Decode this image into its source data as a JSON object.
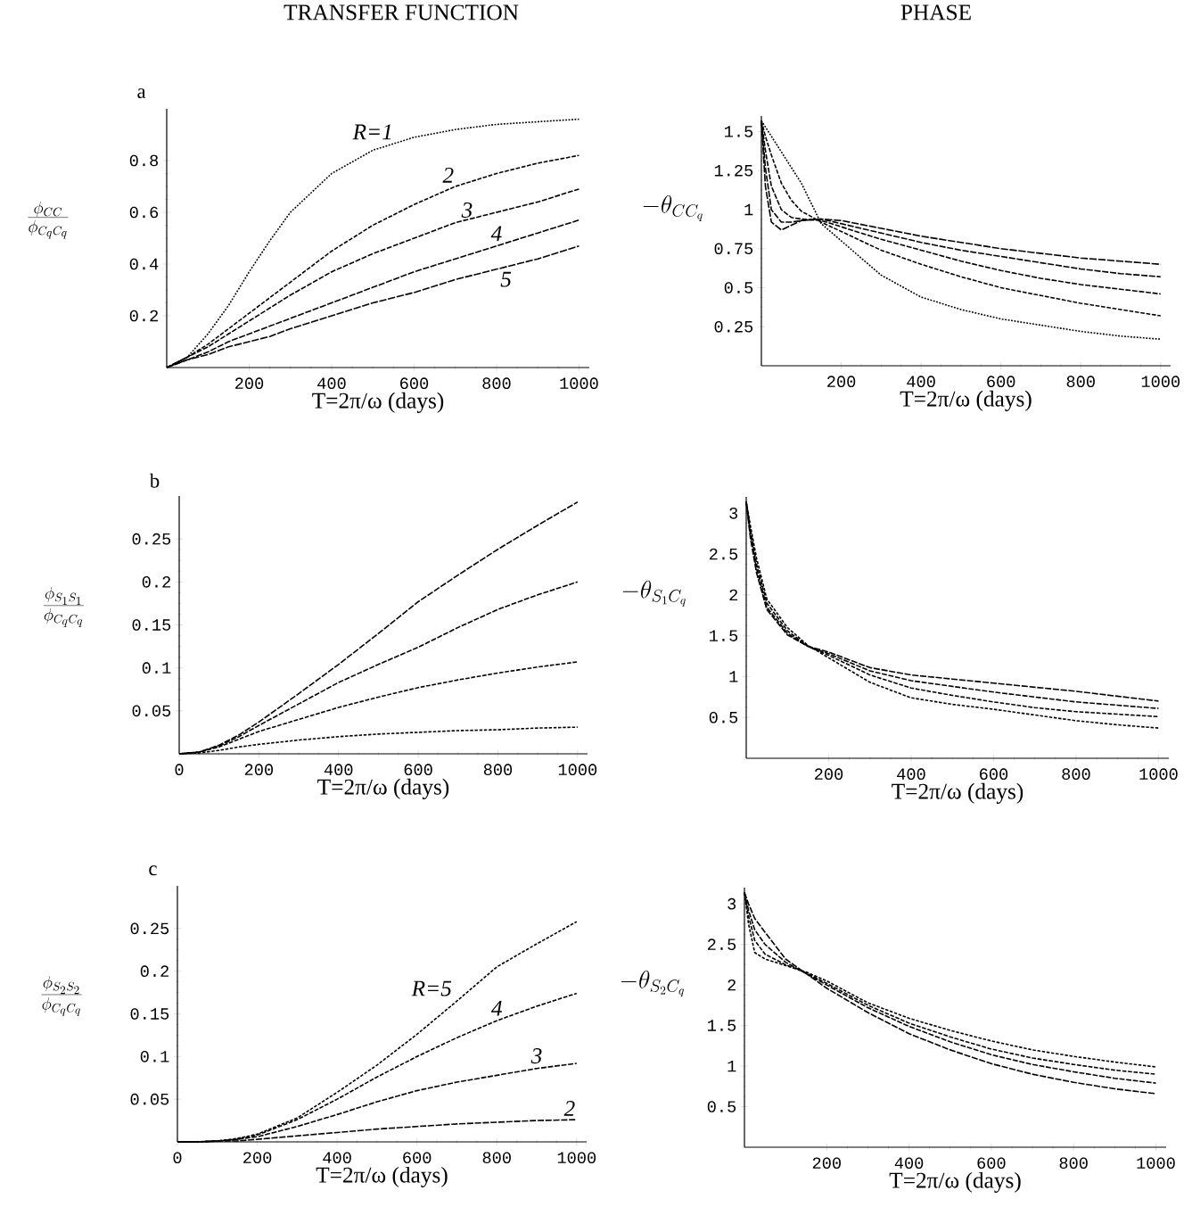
{
  "chart_data": [
    {
      "type": "line",
      "title": "TRANSFER FUNCTION",
      "annotations": [
        "a"
      ],
      "xlabel": "T=2π/ω (days)",
      "ylabel": "\\frac{\\phi_{CC}}{\\phi_{C_q C_q}}",
      "x": [
        0,
        50,
        100,
        150,
        200,
        250,
        300,
        400,
        500,
        600,
        700,
        800,
        900,
        1000
      ],
      "xlim": [
        0,
        1025
      ],
      "ylim": [
        0,
        1
      ],
      "xticks": [
        200,
        400,
        600,
        800,
        1000
      ],
      "yticks": [
        0.2,
        0.4,
        0.6,
        0.8
      ],
      "series": [
        {
          "name": "R=1",
          "color": "#000000",
          "line_style": "dotted",
          "values": [
            0,
            0.04,
            0.13,
            0.24,
            0.37,
            0.49,
            0.6,
            0.75,
            0.84,
            0.89,
            0.92,
            0.94,
            0.95,
            0.96
          ]
        },
        {
          "name": "2",
          "color": "#000000",
          "line_style": "dashed",
          "values": [
            0,
            0.04,
            0.09,
            0.15,
            0.21,
            0.27,
            0.33,
            0.45,
            0.55,
            0.63,
            0.7,
            0.75,
            0.79,
            0.82
          ]
        },
        {
          "name": "3",
          "color": "#000000",
          "line_style": "dashed",
          "values": [
            0,
            0.04,
            0.08,
            0.13,
            0.18,
            0.23,
            0.28,
            0.37,
            0.44,
            0.5,
            0.56,
            0.6,
            0.64,
            0.69
          ]
        },
        {
          "name": "4",
          "color": "#000000",
          "line_style": "dashed",
          "values": [
            0,
            0.03,
            0.06,
            0.1,
            0.13,
            0.16,
            0.19,
            0.25,
            0.31,
            0.37,
            0.42,
            0.47,
            0.52,
            0.57
          ]
        },
        {
          "name": "5",
          "color": "#000000",
          "line_style": "dashed",
          "values": [
            0,
            0.03,
            0.05,
            0.08,
            0.1,
            0.12,
            0.15,
            0.2,
            0.25,
            0.29,
            0.34,
            0.38,
            0.42,
            0.47
          ]
        }
      ]
    },
    {
      "type": "line",
      "title": "PHASE",
      "xlabel": "T=2π/ω (days)",
      "ylabel": "-\\theta_{CC_q}",
      "x": [
        0,
        10,
        25,
        50,
        75,
        100,
        150,
        200,
        300,
        400,
        500,
        600,
        700,
        800,
        900,
        1000
      ],
      "xlim": [
        0,
        1025
      ],
      "ylim": [
        0,
        1.6
      ],
      "xticks": [
        200,
        400,
        600,
        800,
        1000
      ],
      "yticks": [
        0.25,
        0.5,
        0.75,
        1,
        1.25,
        1.5
      ],
      "series": [
        {
          "color": "#000000",
          "line_style": "dotted",
          "values": [
            1.57,
            1.53,
            1.47,
            1.37,
            1.27,
            1.17,
            0.91,
            0.8,
            0.58,
            0.44,
            0.36,
            0.3,
            0.26,
            0.22,
            0.19,
            0.17
          ]
        },
        {
          "color": "#000000",
          "line_style": "dashed",
          "values": [
            1.57,
            1.47,
            1.35,
            1.17,
            1.06,
            0.99,
            0.92,
            0.86,
            0.74,
            0.65,
            0.57,
            0.5,
            0.45,
            0.4,
            0.36,
            0.32
          ]
        },
        {
          "color": "#000000",
          "line_style": "dashed",
          "values": [
            1.57,
            1.38,
            1.15,
            1.0,
            0.95,
            0.94,
            0.93,
            0.89,
            0.81,
            0.74,
            0.67,
            0.61,
            0.56,
            0.52,
            0.49,
            0.46
          ]
        },
        {
          "color": "#000000",
          "line_style": "dashed",
          "values": [
            1.57,
            1.27,
            1.0,
            0.92,
            0.92,
            0.93,
            0.94,
            0.91,
            0.85,
            0.79,
            0.74,
            0.7,
            0.66,
            0.62,
            0.59,
            0.57
          ]
        },
        {
          "color": "#000000",
          "line_style": "dashed",
          "values": [
            1.57,
            1.15,
            0.92,
            0.87,
            0.9,
            0.93,
            0.94,
            0.93,
            0.88,
            0.83,
            0.79,
            0.75,
            0.72,
            0.69,
            0.67,
            0.65
          ]
        }
      ]
    },
    {
      "type": "line",
      "annotations": [
        "b"
      ],
      "xlabel": "T=2π/ω (days)",
      "ylabel": "\\frac{\\phi_{S_1 S_1}}{\\phi_{C_q C_q}}",
      "x": [
        0,
        50,
        100,
        150,
        200,
        300,
        400,
        500,
        600,
        700,
        800,
        900,
        1000
      ],
      "xlim": [
        0,
        1025
      ],
      "ylim": [
        0,
        0.3
      ],
      "xticks": [
        0,
        200,
        400,
        600,
        800,
        1000
      ],
      "yticks": [
        0.05,
        0.1,
        0.15,
        0.2,
        0.25
      ],
      "series": [
        {
          "color": "#000000",
          "line_style": "dashed",
          "values": [
            0,
            0.001,
            0.004,
            0.008,
            0.011,
            0.016,
            0.02,
            0.023,
            0.025,
            0.027,
            0.028,
            0.03,
            0.031
          ]
        },
        {
          "color": "#000000",
          "line_style": "dashed",
          "values": [
            0,
            0.002,
            0.008,
            0.017,
            0.026,
            0.04,
            0.054,
            0.066,
            0.077,
            0.086,
            0.094,
            0.101,
            0.107
          ]
        },
        {
          "color": "#000000",
          "line_style": "dashed",
          "values": [
            0,
            0.002,
            0.009,
            0.02,
            0.033,
            0.058,
            0.083,
            0.104,
            0.124,
            0.147,
            0.168,
            0.185,
            0.2
          ]
        },
        {
          "color": "#000000",
          "line_style": "dashed",
          "values": [
            0,
            0.002,
            0.01,
            0.022,
            0.037,
            0.07,
            0.104,
            0.14,
            0.177,
            0.208,
            0.238,
            0.266,
            0.293
          ]
        }
      ]
    },
    {
      "type": "line",
      "xlabel": "T=2π/ω (days)",
      "ylabel": "-\\theta_{S_1 C_q}",
      "x": [
        0,
        10,
        25,
        50,
        100,
        150,
        200,
        300,
        400,
        500,
        600,
        700,
        800,
        900,
        1000
      ],
      "xlim": [
        0,
        1025
      ],
      "ylim": [
        0,
        3.2
      ],
      "xticks": [
        200,
        400,
        600,
        800,
        1000
      ],
      "yticks": [
        0.5,
        1,
        1.5,
        2,
        2.5,
        3
      ],
      "series": [
        {
          "color": "#000000",
          "line_style": "dashed",
          "values": [
            3.14,
            2.85,
            2.45,
            1.95,
            1.6,
            1.38,
            1.23,
            0.93,
            0.74,
            0.66,
            0.6,
            0.53,
            0.46,
            0.41,
            0.37
          ]
        },
        {
          "color": "#000000",
          "line_style": "dashed",
          "values": [
            3.14,
            2.8,
            2.38,
            1.9,
            1.56,
            1.37,
            1.26,
            1.02,
            0.86,
            0.77,
            0.69,
            0.62,
            0.57,
            0.54,
            0.51
          ]
        },
        {
          "color": "#000000",
          "line_style": "dashed",
          "values": [
            3.14,
            2.75,
            2.32,
            1.85,
            1.53,
            1.37,
            1.28,
            1.07,
            0.95,
            0.88,
            0.81,
            0.75,
            0.69,
            0.65,
            0.61
          ]
        },
        {
          "color": "#000000",
          "line_style": "dashed",
          "values": [
            3.14,
            2.7,
            2.27,
            1.82,
            1.51,
            1.37,
            1.3,
            1.11,
            1.02,
            0.97,
            0.92,
            0.87,
            0.82,
            0.76,
            0.7
          ]
        }
      ]
    },
    {
      "type": "line",
      "annotations": [
        "c"
      ],
      "xlabel": "T=2π/ω (days)",
      "ylabel": "\\frac{\\phi_{S_2 S_2}}{\\phi_{C_q C_q}}",
      "x": [
        0,
        50,
        100,
        150,
        200,
        300,
        400,
        500,
        600,
        700,
        800,
        900,
        1000
      ],
      "xlim": [
        0,
        1025
      ],
      "ylim": [
        0,
        0.3
      ],
      "xticks": [
        0,
        200,
        400,
        600,
        800,
        1000
      ],
      "yticks": [
        0.05,
        0.1,
        0.15,
        0.2,
        0.25
      ],
      "series": [
        {
          "name": "R=5",
          "color": "#000000",
          "line_style": "dashed",
          "values": [
            0,
            0,
            0.001,
            0.004,
            0.009,
            0.028,
            0.058,
            0.09,
            0.126,
            0.165,
            0.205,
            0.232,
            0.258
          ]
        },
        {
          "name": "4",
          "color": "#000000",
          "line_style": "dashed",
          "values": [
            0,
            0,
            0.001,
            0.003,
            0.008,
            0.026,
            0.05,
            0.076,
            0.1,
            0.122,
            0.142,
            0.159,
            0.174
          ]
        },
        {
          "name": "3",
          "color": "#000000",
          "line_style": "dashed",
          "values": [
            0,
            0,
            0.001,
            0.003,
            0.006,
            0.018,
            0.032,
            0.047,
            0.06,
            0.07,
            0.078,
            0.086,
            0.092
          ]
        },
        {
          "name": "2",
          "color": "#000000",
          "line_style": "dashed",
          "values": [
            0,
            0,
            0.001,
            0.001,
            0.003,
            0.007,
            0.011,
            0.015,
            0.018,
            0.021,
            0.023,
            0.025,
            0.026
          ]
        }
      ]
    },
    {
      "type": "line",
      "xlabel": "T=2π/ω (days)",
      "ylabel": "-\\theta_{S_2 C_q}",
      "x": [
        0,
        10,
        25,
        50,
        100,
        150,
        200,
        300,
        400,
        500,
        600,
        700,
        800,
        900,
        1000
      ],
      "xlim": [
        0,
        1025
      ],
      "ylim": [
        0,
        3.2
      ],
      "xticks": [
        200,
        400,
        600,
        800,
        1000
      ],
      "yticks": [
        0.5,
        1,
        1.5,
        2,
        2.5,
        3
      ],
      "series": [
        {
          "color": "#000000",
          "line_style": "dashed",
          "values": [
            3.14,
            2.75,
            2.4,
            2.32,
            2.24,
            2.16,
            2.05,
            1.78,
            1.59,
            1.44,
            1.31,
            1.2,
            1.12,
            1.05,
            0.99
          ]
        },
        {
          "color": "#000000",
          "line_style": "dashed",
          "values": [
            3.14,
            2.85,
            2.55,
            2.38,
            2.25,
            2.15,
            2.02,
            1.75,
            1.53,
            1.36,
            1.21,
            1.1,
            1.02,
            0.95,
            0.9
          ]
        },
        {
          "color": "#000000",
          "line_style": "dashed",
          "values": [
            3.14,
            2.92,
            2.68,
            2.5,
            2.28,
            2.14,
            2.0,
            1.72,
            1.49,
            1.3,
            1.14,
            1.02,
            0.93,
            0.85,
            0.79
          ]
        },
        {
          "color": "#000000",
          "line_style": "dashed",
          "values": [
            3.14,
            3.0,
            2.82,
            2.65,
            2.32,
            2.14,
            1.96,
            1.66,
            1.4,
            1.2,
            1.03,
            0.9,
            0.8,
            0.72,
            0.66
          ]
        }
      ]
    }
  ]
}
